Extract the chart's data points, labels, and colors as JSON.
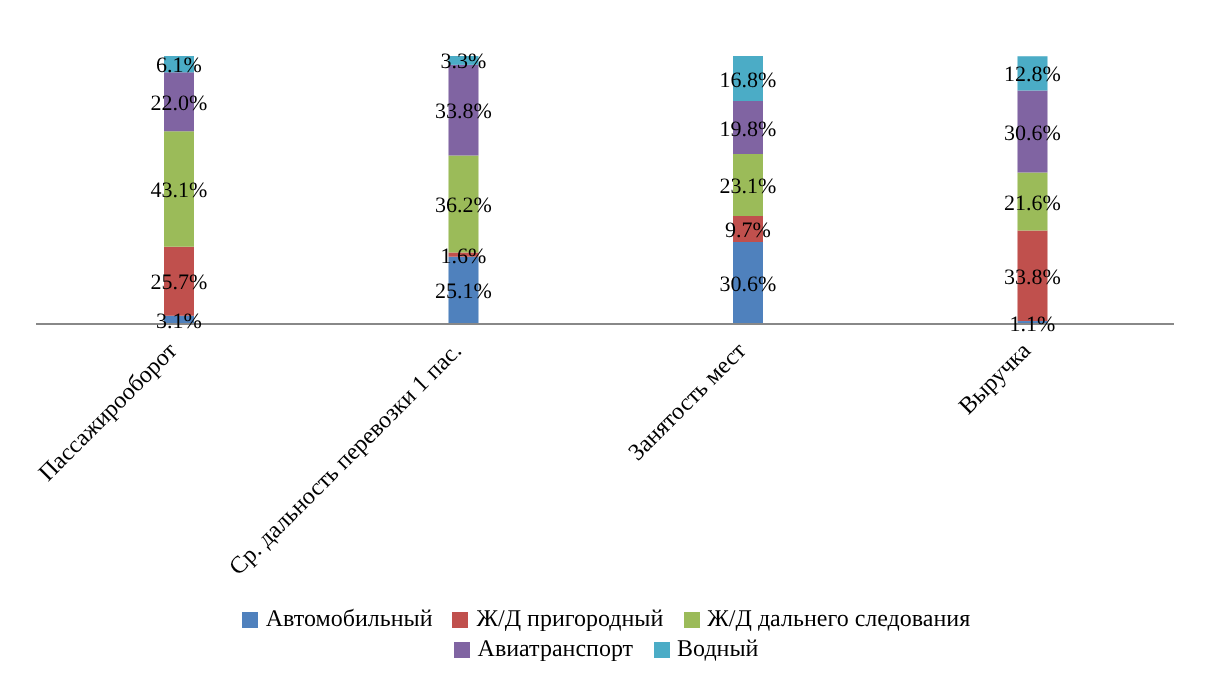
{
  "chart_data": {
    "type": "bar",
    "stacked": true,
    "categories": [
      "Пассажирооборот",
      "Ср. дальность перевозки 1 пас.",
      "Занятость мест",
      "Выручка"
    ],
    "series": [
      {
        "name": "Автомобильный",
        "color": "#4f81bd",
        "values": [
          3.1,
          25.1,
          30.6,
          1.1
        ],
        "value_labels": [
          "3.1%",
          "25.1%",
          "30.6%",
          "1.1%"
        ]
      },
      {
        "name": "Ж/Д пригородный",
        "color": "#c0504d",
        "values": [
          25.7,
          1.6,
          9.7,
          33.8
        ],
        "value_labels": [
          "25.7%",
          "1.6%",
          "9.7%",
          "33.8%"
        ]
      },
      {
        "name": "Ж/Д дальнего следования",
        "color": "#9bbb59",
        "values": [
          43.1,
          36.2,
          23.1,
          21.6
        ],
        "value_labels": [
          "43.1%",
          "36.2%",
          "23.1%",
          "21.6%"
        ]
      },
      {
        "name": "Авиатранспорт",
        "color": "#8064a2",
        "values": [
          22.0,
          33.8,
          19.8,
          30.6
        ],
        "value_labels": [
          "22.0%",
          "33.8%",
          "19.8%",
          "30.6%"
        ]
      },
      {
        "name": "Водный",
        "color": "#4bacc6",
        "values": [
          6.1,
          3.3,
          16.8,
          12.8
        ],
        "value_labels": [
          "6.1%",
          "3.3%",
          "16.8%",
          "12.8%"
        ]
      }
    ],
    "grid": false,
    "legend": "bottom"
  }
}
